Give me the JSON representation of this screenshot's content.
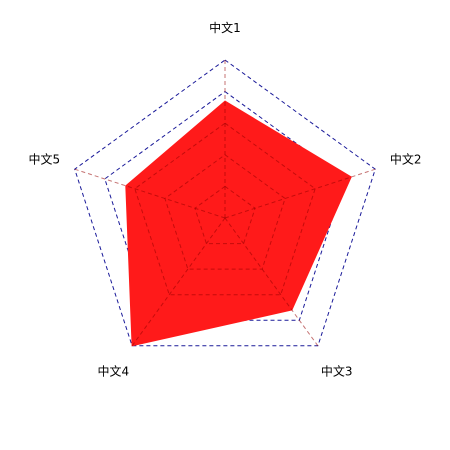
{
  "chart_data": {
    "type": "radar",
    "axes": [
      "中文1",
      "中文2",
      "中文3",
      "中文4",
      "中文5"
    ],
    "series": [
      {
        "values": [
          0.74,
          0.84,
          0.72,
          1.0,
          0.66
        ]
      }
    ],
    "range": [
      0,
      1
    ],
    "grid_levels": [
      0.2,
      0.4,
      0.6,
      0.8,
      1.0
    ],
    "fill_color": "#ff1a1a",
    "grid_color": "#1a1a99"
  }
}
